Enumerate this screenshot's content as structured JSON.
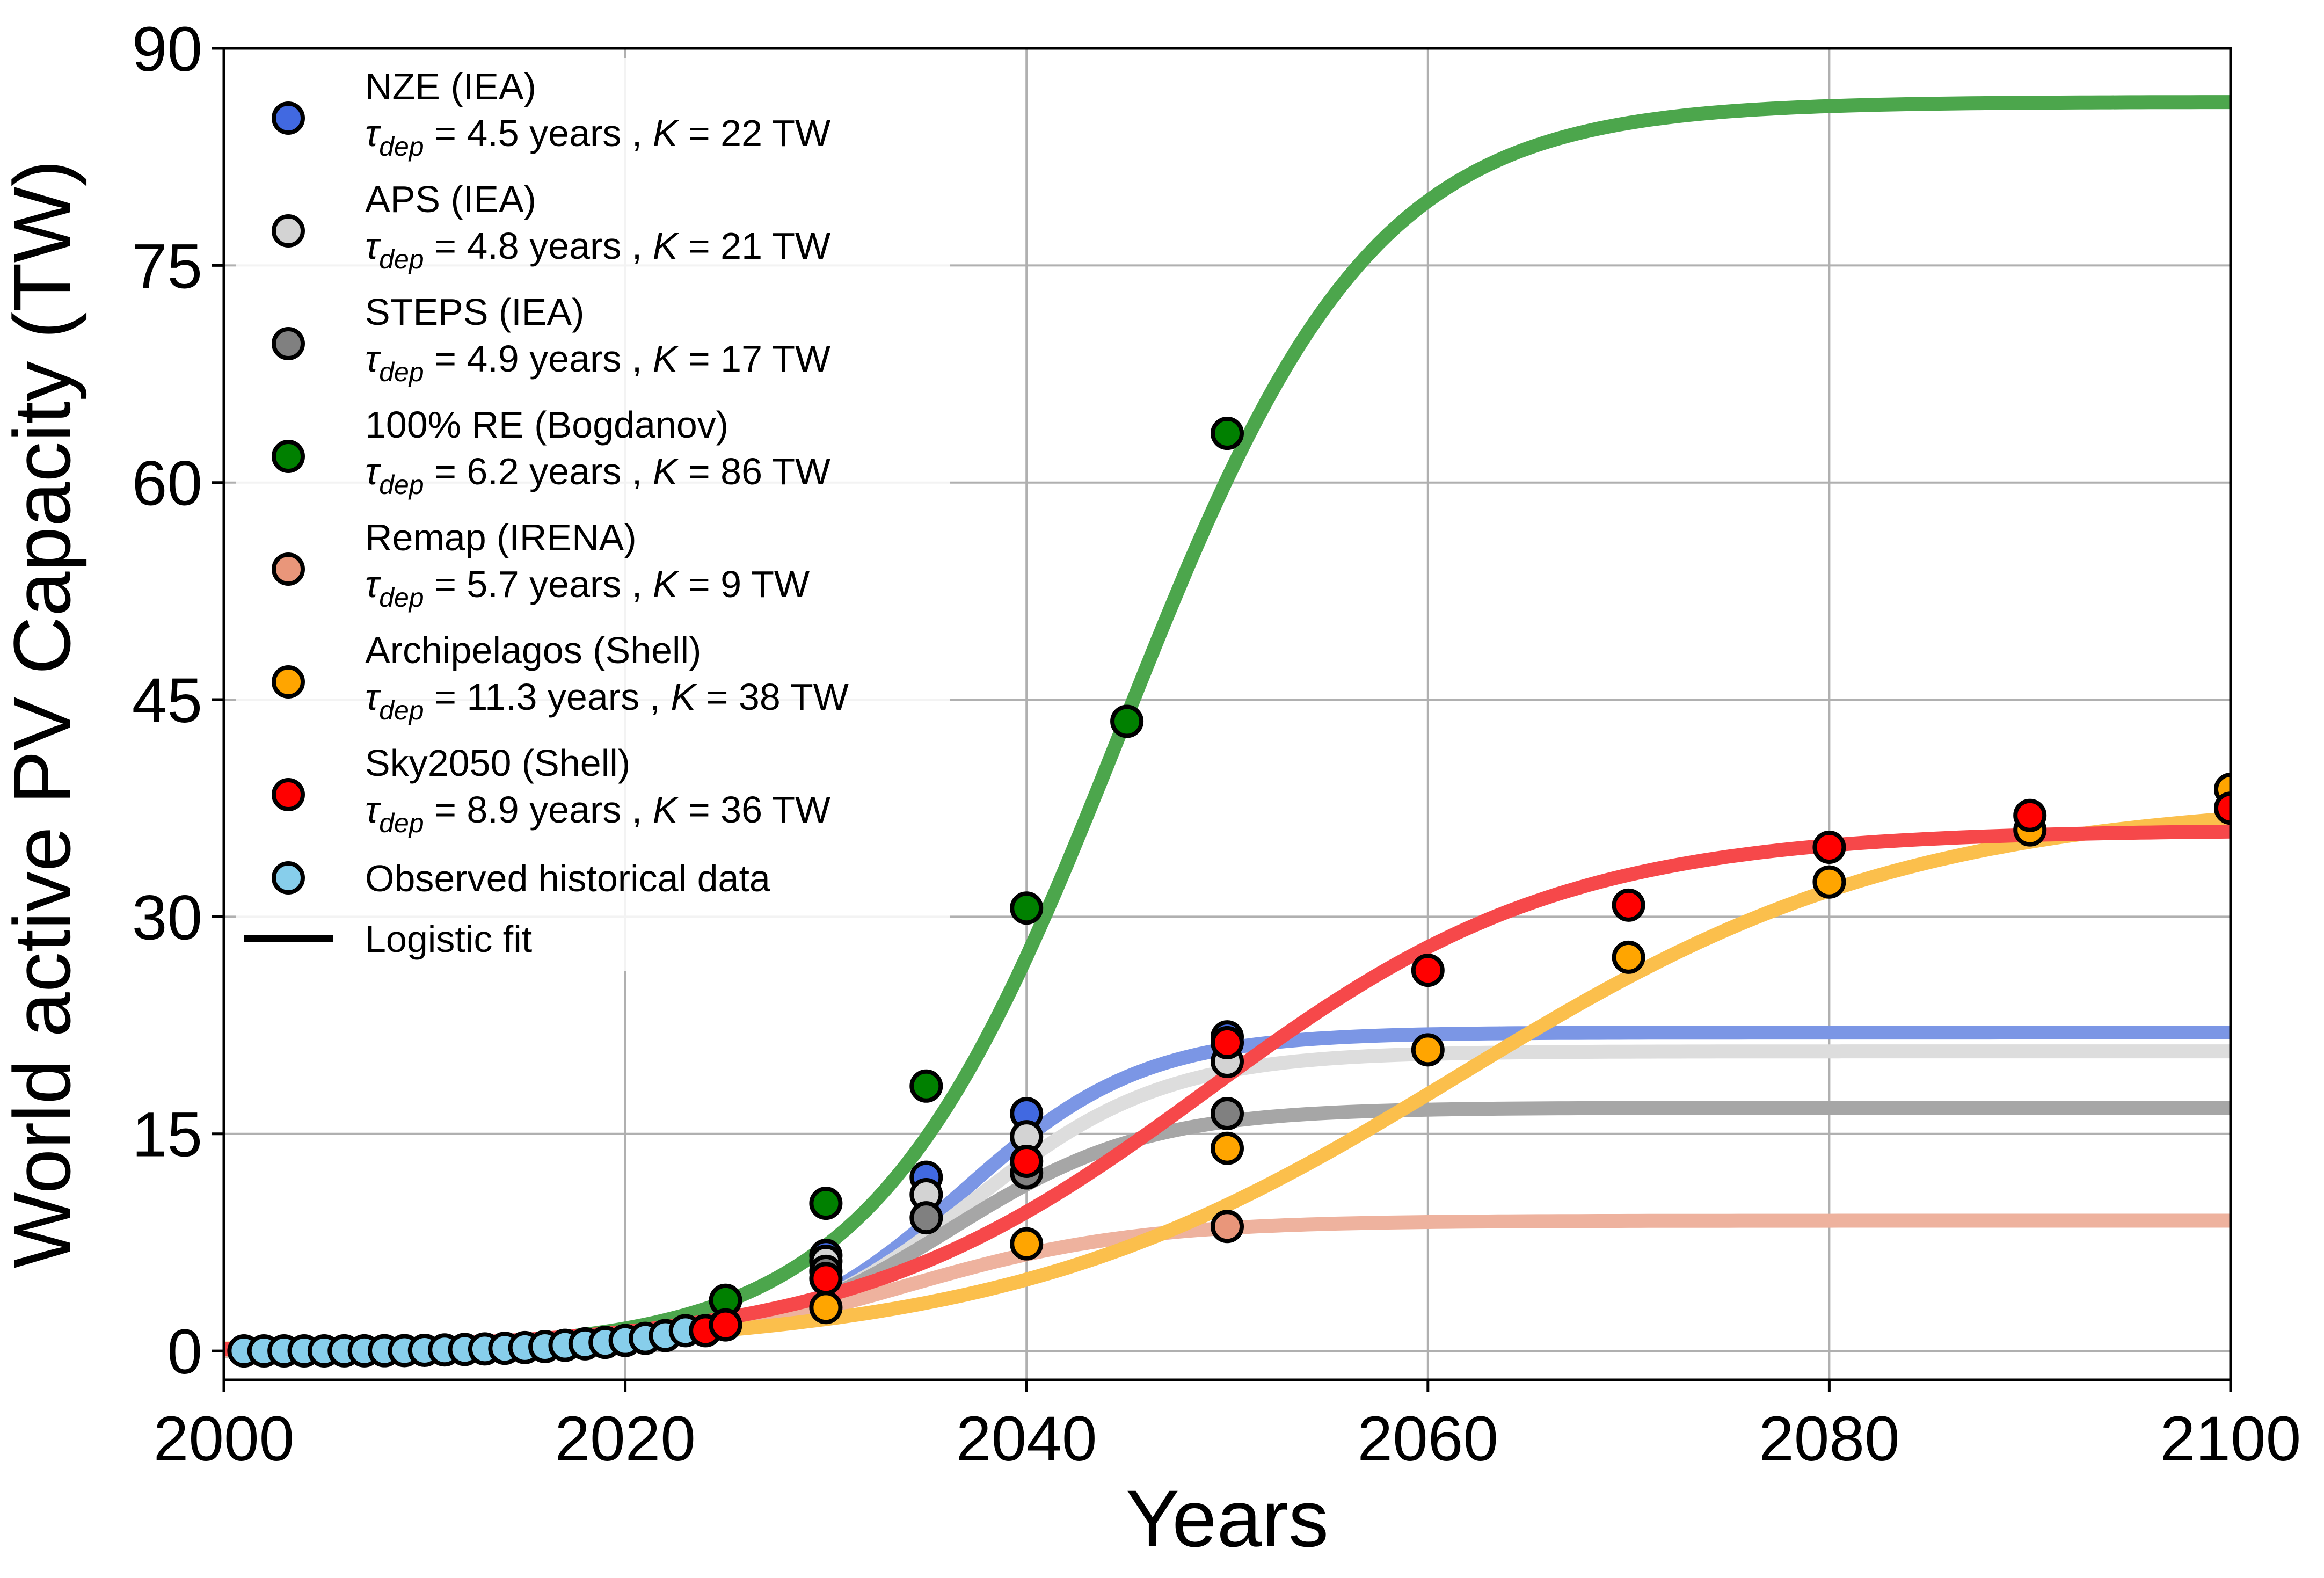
{
  "chart_data": {
    "type": "scatter",
    "xlabel": "Years",
    "ylabel": "World active PV Capacity (TW)",
    "xlim": [
      2000,
      2100
    ],
    "ylim": [
      -2,
      90
    ],
    "x_ticks": [
      2000,
      2020,
      2040,
      2060,
      2080,
      2100
    ],
    "y_ticks": [
      0,
      15,
      30,
      45,
      60,
      75,
      90
    ],
    "grid": true,
    "legend_position": "upper-left",
    "series": [
      {
        "name": "NZE (IEA)",
        "fit_label": "τdep = 4.5 years , K = 22 TW",
        "K": 22,
        "tau_dep": 4.5,
        "t0": 2036.8,
        "color": "#4169e1",
        "line_color": "#7b96e5",
        "x": [
          2030,
          2035,
          2040,
          2050
        ],
        "y": [
          6.6,
          12.0,
          16.4,
          21.7
        ]
      },
      {
        "name": "APS (IEA)",
        "fit_label": "τdep = 4.8 years , K = 21 TW",
        "K": 20.7,
        "tau_dep": 4.8,
        "t0": 2037.3,
        "color": "#d3d3d3",
        "line_color": "#dddddd",
        "x": [
          2030,
          2035,
          2040,
          2050
        ],
        "y": [
          6.2,
          10.8,
          14.8,
          20.0
        ]
      },
      {
        "name": "STEPS (IEA)",
        "fit_label": "τdep = 4.9 years , K = 17 TW",
        "K": 16.8,
        "tau_dep": 4.9,
        "t0": 2036.2,
        "color": "#808080",
        "line_color": "#a6a6a6",
        "x": [
          2030,
          2035,
          2040,
          2050
        ],
        "y": [
          5.5,
          9.2,
          12.3,
          16.4
        ]
      },
      {
        "name": "100% RE (Bogdanov)",
        "fit_label": "τdep = 6.2 years , K = 86 TW",
        "K": 86.3,
        "tau_dep": 6.2,
        "t0": 2044.8,
        "color": "#008000",
        "line_color": "#4ca64c",
        "x": [
          2025,
          2030,
          2035,
          2040,
          2045,
          2050
        ],
        "y": [
          3.5,
          10.2,
          18.3,
          30.6,
          43.5,
          63.4
        ]
      },
      {
        "name": "Remap (IRENA)",
        "fit_label": "τdep = 5.7 years , K = 9 TW",
        "K": 9.0,
        "tau_dep": 5.7,
        "t0": 2034.0,
        "color": "#e9967a",
        "line_color": "#eeb29e",
        "x": [
          2050
        ],
        "y": [
          8.6
        ]
      },
      {
        "name": "Archipelagos (Shell)",
        "fit_label": "τdep = 11.3 years , K = 38 TW",
        "K": 38.0,
        "tau_dep": 11.3,
        "t0": 2061.5,
        "color": "#ffa500",
        "line_color": "#fbbf4c",
        "x": [
          2030,
          2040,
          2050,
          2060,
          2070,
          2080,
          2090,
          2100
        ],
        "y": [
          3.0,
          7.4,
          14.0,
          20.8,
          27.2,
          32.4,
          36.0,
          38.8
        ]
      },
      {
        "name": "Sky2050 (Shell)",
        "fit_label": "τdep = 8.9 years , K = 36 TW",
        "K": 36.0,
        "tau_dep": 8.9,
        "t0": 2049.0,
        "color": "#ff0000",
        "line_color": "#f6484a",
        "x": [
          2024,
          2025,
          2030,
          2040,
          2050,
          2060,
          2070,
          2080,
          2090,
          2100
        ],
        "y": [
          1.4,
          1.8,
          5.0,
          13.1,
          21.3,
          26.3,
          30.8,
          34.8,
          37.0,
          37.5
        ]
      },
      {
        "name": "Observed historical data",
        "color": "#87ceeb",
        "x": [
          2001,
          2002,
          2003,
          2004,
          2005,
          2006,
          2007,
          2008,
          2009,
          2010,
          2011,
          2012,
          2013,
          2014,
          2015,
          2016,
          2017,
          2018,
          2019,
          2020,
          2021,
          2022,
          2023
        ],
        "y": [
          0.001,
          0.002,
          0.003,
          0.004,
          0.005,
          0.007,
          0.009,
          0.015,
          0.023,
          0.04,
          0.07,
          0.1,
          0.14,
          0.18,
          0.23,
          0.3,
          0.39,
          0.49,
          0.59,
          0.72,
          0.87,
          1.06,
          1.4
        ]
      }
    ],
    "legend": {
      "fit_entry": "Logistic fit"
    }
  }
}
